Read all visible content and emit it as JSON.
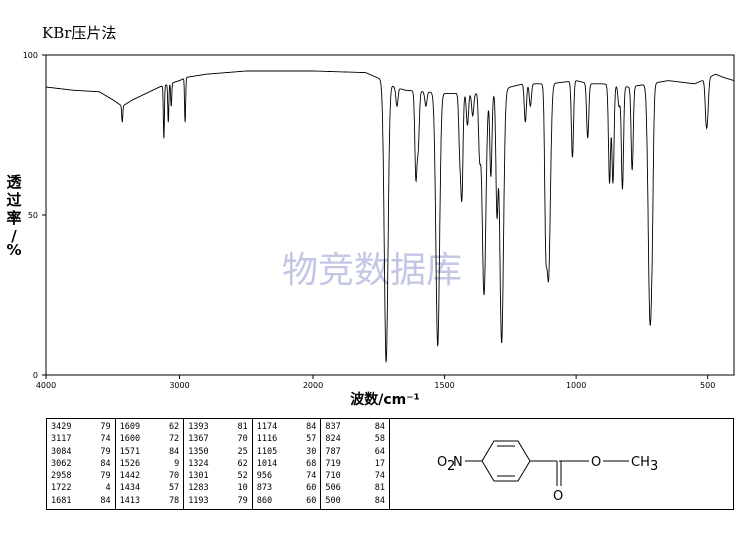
{
  "title": "KBr压片法",
  "watermark": "物竞数据库",
  "structure_labels": {
    "left_group": "O2N",
    "ester_o": "O",
    "methyl": "CH3",
    "carbonyl_o": "O"
  },
  "chart_data": {
    "type": "line",
    "title": "KBr压片法",
    "xlabel": "波数/cm⁻¹",
    "ylabel": "透过率/%",
    "xlim": [
      4000,
      400
    ],
    "ylim": [
      0,
      100
    ],
    "x_ticks": [
      4000,
      3000,
      2000,
      1500,
      1000,
      500
    ],
    "y_ticks": [
      0,
      50,
      100
    ],
    "x_axis_reversed": true,
    "grid": false,
    "line_color": "#000000",
    "baseline": [
      [
        4000,
        90
      ],
      [
        3800,
        89
      ],
      [
        3600,
        88.5
      ],
      [
        3500,
        86
      ],
      [
        3429,
        84
      ],
      [
        3350,
        86
      ],
      [
        3250,
        88
      ],
      [
        3150,
        90
      ],
      [
        3000,
        92
      ],
      [
        2950,
        93
      ],
      [
        2800,
        94
      ],
      [
        2500,
        95
      ],
      [
        2200,
        95
      ],
      [
        2000,
        95
      ],
      [
        1800,
        94.5
      ],
      [
        1730,
        92
      ],
      [
        1690,
        90
      ],
      [
        1650,
        89
      ],
      [
        1500,
        88
      ],
      [
        1400,
        88
      ],
      [
        1300,
        88
      ],
      [
        1250,
        90
      ],
      [
        1200,
        91
      ],
      [
        1100,
        91
      ],
      [
        1000,
        92
      ],
      [
        950,
        91
      ],
      [
        900,
        91
      ],
      [
        800,
        90
      ],
      [
        720,
        91
      ],
      [
        650,
        92
      ],
      [
        550,
        91
      ],
      [
        520,
        92
      ],
      [
        470,
        94
      ],
      [
        440,
        93
      ],
      [
        400,
        92
      ]
    ],
    "peaks": [
      {
        "x": 3429,
        "y": 79
      },
      {
        "x": 3117,
        "y": 74
      },
      {
        "x": 3084,
        "y": 79
      },
      {
        "x": 3062,
        "y": 84
      },
      {
        "x": 2958,
        "y": 79
      },
      {
        "x": 1722,
        "y": 4
      },
      {
        "x": 1681,
        "y": 84
      },
      {
        "x": 1609,
        "y": 62
      },
      {
        "x": 1600,
        "y": 72
      },
      {
        "x": 1571,
        "y": 84
      },
      {
        "x": 1526,
        "y": 9
      },
      {
        "x": 1442,
        "y": 70
      },
      {
        "x": 1434,
        "y": 57
      },
      {
        "x": 1413,
        "y": 78
      },
      {
        "x": 1393,
        "y": 81
      },
      {
        "x": 1367,
        "y": 70
      },
      {
        "x": 1350,
        "y": 25
      },
      {
        "x": 1324,
        "y": 62
      },
      {
        "x": 1301,
        "y": 52
      },
      {
        "x": 1283,
        "y": 10
      },
      {
        "x": 1193,
        "y": 79
      },
      {
        "x": 1174,
        "y": 84
      },
      {
        "x": 1116,
        "y": 57
      },
      {
        "x": 1105,
        "y": 30
      },
      {
        "x": 1014,
        "y": 68
      },
      {
        "x": 956,
        "y": 74
      },
      {
        "x": 873,
        "y": 60
      },
      {
        "x": 860,
        "y": 60
      },
      {
        "x": 837,
        "y": 84
      },
      {
        "x": 824,
        "y": 58
      },
      {
        "x": 787,
        "y": 64
      },
      {
        "x": 719,
        "y": 17
      },
      {
        "x": 710,
        "y": 74
      },
      {
        "x": 506,
        "y": 81
      },
      {
        "x": 500,
        "y": 84
      }
    ]
  },
  "peak_table": [
    [
      [
        "3429",
        "79"
      ],
      [
        "3117",
        "74"
      ],
      [
        "3084",
        "79"
      ],
      [
        "3062",
        "84"
      ],
      [
        "2958",
        "79"
      ],
      [
        "1722",
        "4"
      ],
      [
        "1681",
        "84"
      ]
    ],
    [
      [
        "1609",
        "62"
      ],
      [
        "1600",
        "72"
      ],
      [
        "1571",
        "84"
      ],
      [
        "1526",
        "9"
      ],
      [
        "1442",
        "70"
      ],
      [
        "1434",
        "57"
      ],
      [
        "1413",
        "78"
      ]
    ],
    [
      [
        "1393",
        "81"
      ],
      [
        "1367",
        "70"
      ],
      [
        "1350",
        "25"
      ],
      [
        "1324",
        "62"
      ],
      [
        "1301",
        "52"
      ],
      [
        "1283",
        "10"
      ],
      [
        "1193",
        "79"
      ]
    ],
    [
      [
        "1174",
        "84"
      ],
      [
        "1116",
        "57"
      ],
      [
        "1105",
        "30"
      ],
      [
        "1014",
        "68"
      ],
      [
        "956",
        "74"
      ],
      [
        "873",
        "60"
      ],
      [
        "860",
        "60"
      ]
    ],
    [
      [
        "837",
        "84"
      ],
      [
        "824",
        "58"
      ],
      [
        "787",
        "64"
      ],
      [
        "719",
        "17"
      ],
      [
        "710",
        "74"
      ],
      [
        "506",
        "81"
      ],
      [
        "500",
        "84"
      ]
    ]
  ]
}
